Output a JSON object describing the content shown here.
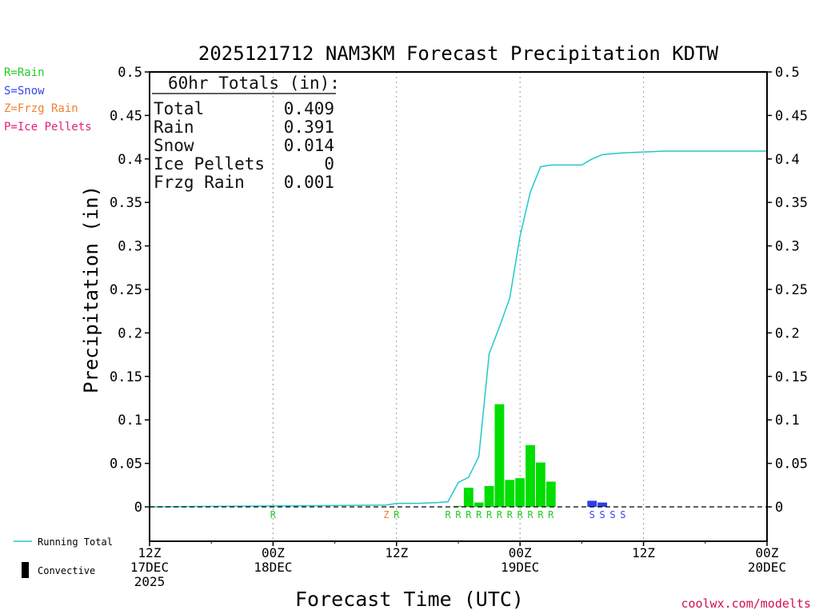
{
  "chart_data": {
    "type": "bar",
    "title": "2025121712 NAM3KM Forecast Precipitation KDTW",
    "xlabel": "Forecast Time (UTC)",
    "ylabel": "Precipitation (in)",
    "ylim": [
      -0.04,
      0.5
    ],
    "xlim_hours": [
      0,
      60
    ],
    "yticks": [
      "0.5",
      "0.45",
      "0.4",
      "0.35",
      "0.3",
      "0.25",
      "0.2",
      "0.15",
      "0.1",
      "0.05",
      "0"
    ],
    "ytick_values": [
      0.5,
      0.45,
      0.4,
      0.35,
      0.3,
      0.25,
      0.2,
      0.15,
      0.1,
      0.05,
      0
    ],
    "xticks": [
      {
        "hour": 0,
        "line1": "12Z",
        "line2": "17DEC",
        "line3": "2025"
      },
      {
        "hour": 12,
        "line1": "00Z",
        "line2": "18DEC",
        "line3": ""
      },
      {
        "hour": 24,
        "line1": "12Z",
        "line2": "",
        "line3": ""
      },
      {
        "hour": 36,
        "line1": "00Z",
        "line2": "19DEC",
        "line3": ""
      },
      {
        "hour": 48,
        "line1": "12Z",
        "line2": "",
        "line3": ""
      },
      {
        "hour": 60,
        "line1": "00Z",
        "line2": "20DEC",
        "line3": ""
      }
    ],
    "vgrid_hours": [
      12,
      24,
      36,
      48
    ],
    "bars": [
      {
        "hour": 30,
        "value": 0.001,
        "type": "R"
      },
      {
        "hour": 31,
        "value": 0.022,
        "type": "R"
      },
      {
        "hour": 32,
        "value": 0.005,
        "type": "R"
      },
      {
        "hour": 33,
        "value": 0.024,
        "type": "R"
      },
      {
        "hour": 34,
        "value": 0.118,
        "type": "R"
      },
      {
        "hour": 35,
        "value": 0.031,
        "type": "R"
      },
      {
        "hour": 36,
        "value": 0.033,
        "type": "R"
      },
      {
        "hour": 37,
        "value": 0.071,
        "type": "R"
      },
      {
        "hour": 38,
        "value": 0.051,
        "type": "R"
      },
      {
        "hour": 39,
        "value": 0.029,
        "type": "R"
      },
      {
        "hour": 43,
        "value": 0.007,
        "type": "S"
      },
      {
        "hour": 44,
        "value": 0.005,
        "type": "S"
      }
    ],
    "running_total": {
      "hours": [
        0,
        12,
        23,
        24,
        26,
        28,
        29,
        30,
        31,
        32,
        33,
        34,
        35,
        36,
        37,
        38,
        39,
        40,
        41,
        42,
        43,
        44,
        45,
        46,
        48,
        50,
        60
      ],
      "values": [
        0,
        0.001,
        0.002,
        0.004,
        0.004,
        0.005,
        0.006,
        0.028,
        0.034,
        0.058,
        0.176,
        0.207,
        0.24,
        0.311,
        0.362,
        0.391,
        0.393,
        0.393,
        0.393,
        0.393,
        0.4,
        0.405,
        0.406,
        0.407,
        0.408,
        0.409,
        0.409
      ]
    },
    "ptype_markers": [
      {
        "hour": 12,
        "code": "R"
      },
      {
        "hour": 23,
        "code": "Z"
      },
      {
        "hour": 24,
        "code": "R"
      },
      {
        "hour": 29,
        "code": "R"
      },
      {
        "hour": 30,
        "code": "R"
      },
      {
        "hour": 31,
        "code": "R"
      },
      {
        "hour": 32,
        "code": "R"
      },
      {
        "hour": 33,
        "code": "R"
      },
      {
        "hour": 34,
        "code": "R"
      },
      {
        "hour": 35,
        "code": "R"
      },
      {
        "hour": 36,
        "code": "R"
      },
      {
        "hour": 37,
        "code": "R"
      },
      {
        "hour": 38,
        "code": "R"
      },
      {
        "hour": 39,
        "code": "R"
      },
      {
        "hour": 43,
        "code": "S"
      },
      {
        "hour": 44,
        "code": "S"
      },
      {
        "hour": 45,
        "code": "S"
      },
      {
        "hour": 46,
        "code": "S"
      }
    ],
    "totals_box": {
      "heading": "60hr Totals (in):",
      "rows": [
        {
          "label": "Total",
          "value": "0.409"
        },
        {
          "label": "Rain",
          "value": "0.391"
        },
        {
          "label": "Snow",
          "value": "0.014"
        },
        {
          "label": "Ice Pellets",
          "value": "0"
        },
        {
          "label": "Frzg Rain",
          "value": "0.001"
        }
      ]
    },
    "ptype_legend": [
      {
        "code": "R",
        "label": "R=Rain",
        "color": "#22cc22"
      },
      {
        "code": "S",
        "label": "S=Snow",
        "color": "#3344ee"
      },
      {
        "code": "Z",
        "label": "Z=Frzg Rain",
        "color": "#f08030"
      },
      {
        "code": "P",
        "label": "P=Ice Pellets",
        "color": "#e0207a"
      }
    ],
    "series_legend": [
      {
        "label": "Running Total",
        "color": "#22c8c8"
      },
      {
        "label": "Convective",
        "color": "#000000"
      }
    ],
    "bar_colors": {
      "R": "#00dd00",
      "S": "#2a3fe8",
      "Z": "#f08030",
      "P": "#e0207a"
    },
    "line_color": "#22c8c8",
    "source": "coolwx.com/modelts"
  }
}
